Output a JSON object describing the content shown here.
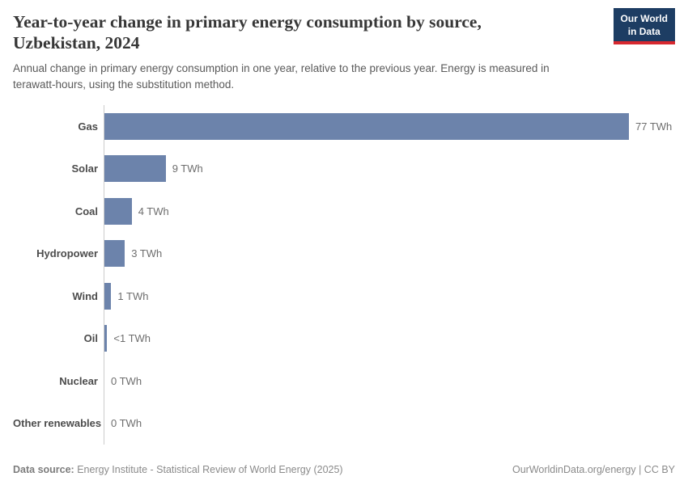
{
  "header": {
    "title_lines": [
      "Year-to-year change in primary energy consumption by source,",
      "Uzbekistan, 2024"
    ],
    "subtitle_lines": [
      "Annual change in primary energy consumption in one year, relative to the previous year. Energy is measured in",
      "terawatt-hours, using the substitution method."
    ],
    "logo": {
      "line1": "Our World",
      "line2": "in Data"
    }
  },
  "chart_data": {
    "type": "bar",
    "orientation": "horizontal",
    "title": "Year-to-year change in primary energy consumption by source, Uzbekistan, 2024",
    "unit": "TWh",
    "xlim": [
      0,
      77
    ],
    "grid": false,
    "legend": false,
    "bar_color": "#6c83ab",
    "categories": [
      "Gas",
      "Solar",
      "Coal",
      "Hydropower",
      "Wind",
      "Oil",
      "Nuclear",
      "Other renewables"
    ],
    "values": [
      77,
      9,
      4,
      3,
      1,
      0.4,
      0,
      0
    ],
    "value_labels": [
      "77 TWh",
      "9 TWh",
      "4 TWh",
      "3 TWh",
      "1 TWh",
      "<1 TWh",
      "0 TWh",
      "0 TWh"
    ]
  },
  "footer": {
    "datasource_label": "Data source:",
    "datasource_value": " Energy Institute - Statistical Review of World Energy (2025)",
    "attribution": "OurWorldinData.org/energy | CC BY"
  },
  "colors": {
    "bar": "#6c83ab",
    "axis_line": "#cccccc",
    "logo_background": "#1d3d63",
    "logo_accent": "#d7282f",
    "title_text": "#373737",
    "muted_text": "#8a8a8a"
  }
}
